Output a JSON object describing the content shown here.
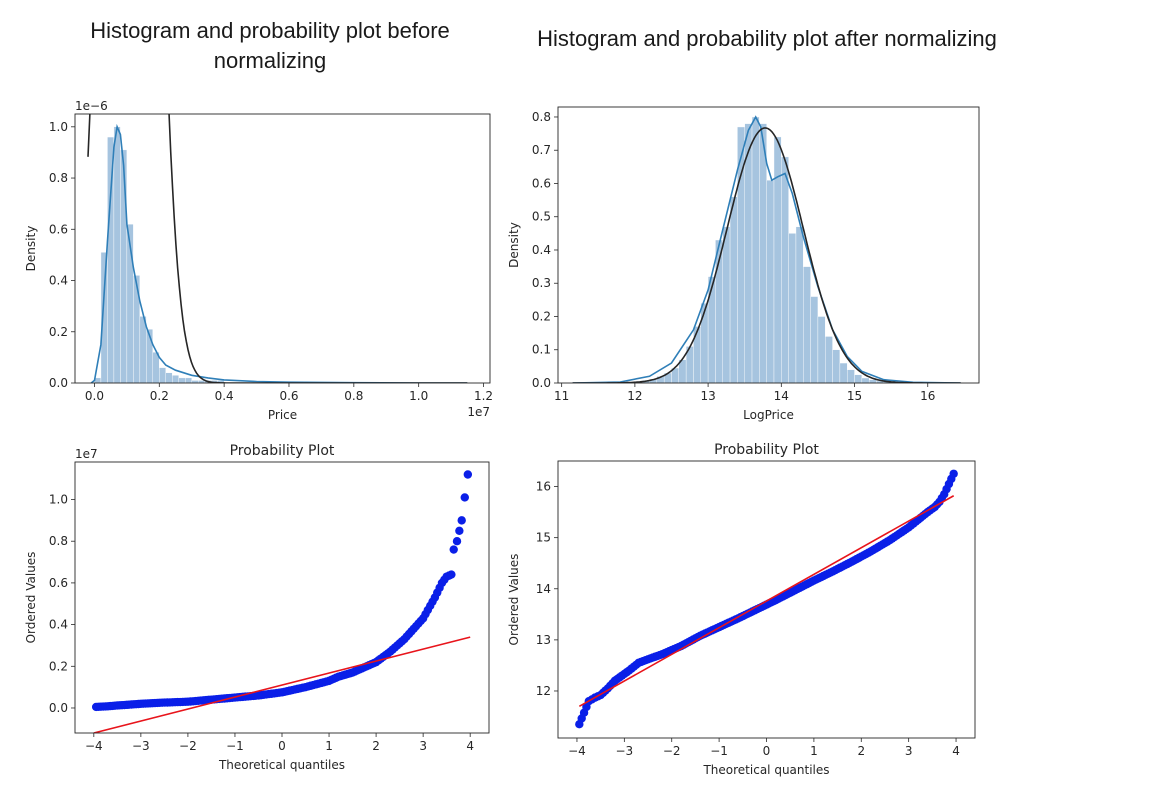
{
  "headings": {
    "before": "Histogram and probability plot before normalizing",
    "after": "Histogram and probability plot after normalizing"
  },
  "colors": {
    "hist_fill": "#a6c4df",
    "kde_line": "#2f7fb8",
    "normal_fit_line": "#262626",
    "points": "#0a1fe8",
    "fit_line": "#e8141b"
  },
  "chart_data": [
    {
      "type": "area",
      "xlabel": "Price",
      "ylabel": "Density",
      "x_offset_text": "1e7",
      "y_offset_text": "1e−6",
      "xlim": [
        -0.06,
        1.22
      ],
      "ylim": [
        0,
        1.05
      ],
      "xticks": [
        0.0,
        0.2,
        0.4,
        0.6,
        0.8,
        1.0,
        1.2
      ],
      "xtick_labels": [
        "0.0",
        "0.2",
        "0.4",
        "0.6",
        "0.8",
        "1.0",
        "1.2"
      ],
      "yticks": [
        0.0,
        0.2,
        0.4,
        0.6,
        0.8,
        1.0
      ],
      "ytick_labels": [
        "0.0",
        "0.2",
        "0.4",
        "0.6",
        "0.8",
        "1.0"
      ],
      "histogram": {
        "bin_edges": [
          0.0,
          0.02,
          0.04,
          0.06,
          0.08,
          0.1,
          0.12,
          0.14,
          0.16,
          0.18,
          0.2,
          0.22,
          0.24,
          0.26,
          0.28,
          0.3,
          0.32,
          0.34,
          0.36,
          0.38,
          0.4
        ],
        "density": [
          0.02,
          0.51,
          0.96,
          1.0,
          0.91,
          0.62,
          0.42,
          0.26,
          0.21,
          0.12,
          0.06,
          0.04,
          0.03,
          0.02,
          0.02,
          0.01,
          0.01,
          0.01,
          0.01,
          0.01
        ]
      },
      "series": [
        {
          "kind": "kde",
          "x": [
            -0.01,
            0.0,
            0.02,
            0.04,
            0.06,
            0.07,
            0.08,
            0.09,
            0.1,
            0.12,
            0.14,
            0.16,
            0.18,
            0.2,
            0.22,
            0.25,
            0.3,
            0.35,
            0.4,
            0.5,
            0.6,
            0.8,
            1.0,
            1.15
          ],
          "y": [
            0.0,
            0.01,
            0.15,
            0.55,
            0.92,
            1.0,
            0.97,
            0.85,
            0.62,
            0.45,
            0.32,
            0.22,
            0.15,
            0.1,
            0.07,
            0.05,
            0.03,
            0.02,
            0.012,
            0.006,
            0.003,
            0.001,
            0.0,
            0.0
          ]
        },
        {
          "kind": "normal_fit",
          "mean": 0.108,
          "std": 0.065,
          "x_range": [
            -0.02,
            1.15
          ]
        }
      ]
    },
    {
      "type": "area",
      "xlabel": "LogPrice",
      "ylabel": "Density",
      "xlim": [
        10.95,
        16.7
      ],
      "ylim": [
        0,
        0.83
      ],
      "xticks": [
        11,
        12,
        13,
        14,
        15,
        16
      ],
      "xtick_labels": [
        "11",
        "12",
        "13",
        "14",
        "15",
        "16"
      ],
      "yticks": [
        0.0,
        0.1,
        0.2,
        0.3,
        0.4,
        0.5,
        0.6,
        0.7,
        0.8
      ],
      "ytick_labels": [
        "0.0",
        "0.1",
        "0.2",
        "0.3",
        "0.4",
        "0.5",
        "0.6",
        "0.7",
        "0.8"
      ],
      "histogram": {
        "bin_edges": [
          12.0,
          12.1,
          12.2,
          12.3,
          12.4,
          12.5,
          12.6,
          12.7,
          12.8,
          12.9,
          13.0,
          13.1,
          13.2,
          13.3,
          13.4,
          13.5,
          13.6,
          13.7,
          13.8,
          13.9,
          14.0,
          14.1,
          14.2,
          14.3,
          14.4,
          14.5,
          14.6,
          14.7,
          14.8,
          14.9,
          15.0,
          15.1,
          15.2,
          15.3,
          15.4,
          15.5,
          15.6,
          15.7,
          15.8,
          15.9,
          16.0
        ],
        "density": [
          0.005,
          0.008,
          0.012,
          0.02,
          0.03,
          0.045,
          0.07,
          0.11,
          0.17,
          0.24,
          0.32,
          0.43,
          0.47,
          0.56,
          0.77,
          0.78,
          0.8,
          0.78,
          0.61,
          0.74,
          0.68,
          0.45,
          0.47,
          0.35,
          0.26,
          0.2,
          0.14,
          0.1,
          0.06,
          0.04,
          0.025,
          0.015,
          0.01,
          0.006,
          0.004,
          0.003,
          0.002,
          0.001,
          0.001,
          0.001
        ]
      },
      "series": [
        {
          "kind": "kde",
          "x": [
            11.15,
            11.8,
            12.2,
            12.5,
            12.8,
            13.0,
            13.2,
            13.4,
            13.55,
            13.65,
            13.72,
            13.8,
            13.87,
            13.95,
            14.05,
            14.15,
            14.3,
            14.5,
            14.7,
            14.9,
            15.1,
            15.4,
            15.8,
            16.45
          ],
          "y": [
            0.0,
            0.003,
            0.02,
            0.06,
            0.16,
            0.28,
            0.46,
            0.64,
            0.76,
            0.8,
            0.77,
            0.66,
            0.61,
            0.62,
            0.63,
            0.57,
            0.44,
            0.29,
            0.16,
            0.08,
            0.035,
            0.01,
            0.002,
            0.0
          ]
        },
        {
          "kind": "normal_fit",
          "mean": 13.78,
          "std": 0.52,
          "x_range": [
            11.15,
            16.45
          ]
        }
      ]
    },
    {
      "type": "scatter",
      "title": "Probability Plot",
      "xlabel": "Theoretical quantiles",
      "ylabel": "Ordered Values",
      "y_offset_text": "1e7",
      "xlim": [
        -4.4,
        4.4
      ],
      "ylim": [
        -0.12,
        1.18
      ],
      "xticks": [
        -4,
        -3,
        -2,
        -1,
        0,
        1,
        2,
        3,
        4
      ],
      "xtick_labels": [
        "−4",
        "−3",
        "−2",
        "−1",
        "0",
        "1",
        "2",
        "3",
        "4"
      ],
      "yticks": [
        0.0,
        0.2,
        0.4,
        0.6,
        0.8,
        1.0
      ],
      "ytick_labels": [
        "0.0",
        "0.2",
        "0.4",
        "0.6",
        "0.8",
        "1.0"
      ],
      "points": {
        "x": [
          -3.95,
          -3.7,
          -3.5,
          -3.3,
          -3.0,
          -2.6,
          -2.0,
          -1.5,
          -1.0,
          -0.5,
          0.0,
          0.5,
          1.0,
          1.2,
          1.5,
          1.8,
          2.0,
          2.3,
          2.6,
          2.8,
          3.0,
          3.1,
          3.25,
          3.4,
          3.5,
          3.6,
          3.65,
          3.72,
          3.82,
          3.95
        ],
        "y": [
          0.005,
          0.008,
          0.012,
          0.015,
          0.02,
          0.025,
          0.03,
          0.04,
          0.05,
          0.06,
          0.075,
          0.1,
          0.13,
          0.15,
          0.17,
          0.2,
          0.22,
          0.27,
          0.33,
          0.38,
          0.43,
          0.47,
          0.53,
          0.6,
          0.63,
          0.64,
          0.76,
          0.8,
          0.9,
          1.12
        ]
      },
      "fit_line": {
        "x": [
          -4.0,
          4.0
        ],
        "y": [
          -0.12,
          0.34
        ]
      }
    },
    {
      "type": "scatter",
      "title": "Probability Plot",
      "xlabel": "Theoretical quantiles",
      "ylabel": "Ordered Values",
      "xlim": [
        -4.4,
        4.4
      ],
      "ylim": [
        11.08,
        16.5
      ],
      "xticks": [
        -4,
        -3,
        -2,
        -1,
        0,
        1,
        2,
        3,
        4
      ],
      "xtick_labels": [
        "−4",
        "−3",
        "−2",
        "−1",
        "0",
        "1",
        "2",
        "3",
        "4"
      ],
      "yticks": [
        12,
        13,
        14,
        15,
        16
      ],
      "ytick_labels": [
        "12",
        "13",
        "14",
        "15",
        "16"
      ],
      "points": {
        "x": [
          -3.95,
          -3.75,
          -3.62,
          -3.5,
          -3.35,
          -3.2,
          -3.05,
          -2.9,
          -2.7,
          -2.5,
          -2.2,
          -1.8,
          -1.4,
          -1.0,
          -0.6,
          -0.2,
          0.0,
          0.2,
          0.6,
          1.0,
          1.4,
          1.8,
          2.2,
          2.6,
          3.0,
          3.2,
          3.4,
          3.55,
          3.65,
          3.75,
          3.95
        ],
        "y": [
          11.35,
          11.8,
          11.87,
          11.92,
          12.05,
          12.2,
          12.3,
          12.4,
          12.55,
          12.62,
          12.72,
          12.88,
          13.08,
          13.25,
          13.42,
          13.6,
          13.69,
          13.78,
          13.97,
          14.16,
          14.34,
          14.53,
          14.73,
          14.95,
          15.2,
          15.35,
          15.5,
          15.6,
          15.7,
          15.85,
          16.25
        ]
      },
      "fit_line": {
        "x": [
          -3.95,
          3.95
        ],
        "y": [
          11.7,
          15.82
        ]
      }
    }
  ]
}
